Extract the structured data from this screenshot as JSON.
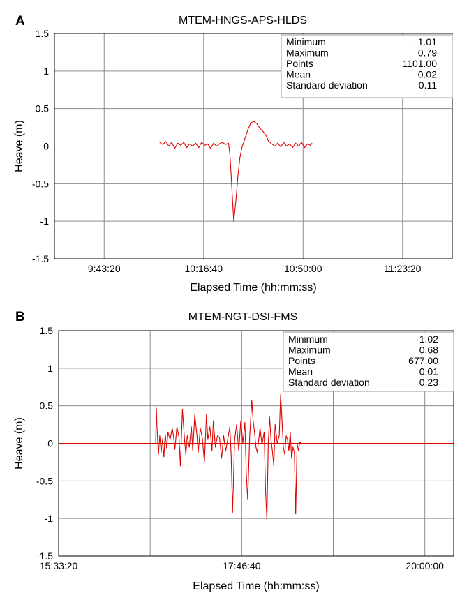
{
  "chart_data": [
    {
      "type": "line",
      "panel_label": "A",
      "title": "MTEM-HNGS-APS-HLDS",
      "xlabel": "Elapsed Time (hh:mm:ss)",
      "ylabel": "Heave (m)",
      "xlim": [
        "09:26:40",
        "11:40:00"
      ],
      "ylim": [
        -1.5,
        1.5
      ],
      "grid": true,
      "xticks": [
        "9:43:20",
        "10:16:40",
        "10:50:00",
        "11:23:20"
      ],
      "yticks": [
        "1.5",
        "1",
        "0.5",
        "0",
        "-0.5",
        "-1",
        "-1.5"
      ],
      "line_color": "#e00000",
      "baseline_color": "#e00000",
      "stats": [
        {
          "label": "Minimum",
          "value": "-1.01"
        },
        {
          "label": "Maximum",
          "value": "0.79"
        },
        {
          "label": "Points",
          "value": "1101.00"
        },
        {
          "label": "Mean",
          "value": "0.02"
        },
        {
          "label": "Standard deviation",
          "value": "0.11"
        }
      ],
      "series": [
        {
          "x": [
            "10:01:55",
            "10:03:00",
            "10:04:00",
            "10:05:00",
            "10:06:00",
            "10:07:00",
            "10:08:00",
            "10:09:00",
            "10:10:00",
            "10:11:00",
            "10:12:00",
            "10:13:00",
            "10:14:00",
            "10:15:00",
            "10:16:00",
            "10:17:00",
            "10:18:00",
            "10:19:00",
            "10:20:00",
            "10:21:00",
            "10:22:00",
            "10:23:00",
            "10:24:00",
            "10:25:00",
            "10:25:30",
            "10:26:00",
            "10:26:45",
            "10:27:30",
            "10:28:10",
            "10:28:50",
            "10:29:30",
            "10:30:30",
            "10:31:30",
            "10:32:30",
            "10:33:30",
            "10:34:30",
            "10:35:30",
            "10:36:30",
            "10:37:30",
            "10:38:30",
            "10:39:30",
            "10:40:30",
            "10:41:30",
            "10:42:30",
            "10:43:30",
            "10:44:30",
            "10:45:30",
            "10:46:30",
            "10:47:30",
            "10:48:30",
            "10:49:30",
            "10:50:30",
            "10:51:30",
            "10:52:30",
            "10:53:00"
          ],
          "y": [
            0.05,
            0.02,
            0.06,
            0.0,
            0.05,
            -0.03,
            0.04,
            0.01,
            0.05,
            -0.02,
            0.03,
            0.0,
            0.04,
            -0.02,
            0.05,
            0.01,
            0.03,
            -0.03,
            0.04,
            0.0,
            0.03,
            0.05,
            0.02,
            0.04,
            -0.12,
            -0.45,
            -1.0,
            -0.72,
            -0.4,
            -0.15,
            -0.02,
            0.1,
            0.22,
            0.31,
            0.33,
            0.3,
            0.24,
            0.2,
            0.15,
            0.06,
            0.03,
            0.0,
            0.04,
            -0.01,
            0.05,
            0.0,
            0.03,
            -0.02,
            0.04,
            0.0,
            0.05,
            -0.02,
            0.03,
            0.01,
            0.04
          ]
        }
      ]
    },
    {
      "type": "line",
      "panel_label": "B",
      "title": "MTEM-NGT-DSI-FMS",
      "xlabel": "Elapsed Time (hh:mm:ss)",
      "ylabel": "Heave (m)",
      "xlim": [
        "15:33:20",
        "20:21:00"
      ],
      "ylim": [
        -1.5,
        1.5
      ],
      "grid": true,
      "xticks": [
        "15:33:20",
        "17:46:40",
        "20:00:00"
      ],
      "yticks": [
        "1.5",
        "1",
        "0.5",
        "0",
        "-0.5",
        "-1",
        "-1.5"
      ],
      "line_color": "#e00000",
      "baseline_color": "#e00000",
      "stats": [
        {
          "label": "Minimum",
          "value": "-1.02"
        },
        {
          "label": "Maximum",
          "value": "0.68"
        },
        {
          "label": "Points",
          "value": "677.00"
        },
        {
          "label": "Mean",
          "value": "0.01"
        },
        {
          "label": "Standard deviation",
          "value": "0.23"
        }
      ],
      "series": [
        {
          "x": [
            "16:34:40",
            "16:44:00",
            "16:44:30",
            "16:45:00",
            "16:46:00",
            "16:47:00",
            "16:48:00",
            "16:49:00",
            "16:50:00",
            "16:51:00",
            "16:52:00",
            "16:53:00",
            "16:54:30",
            "16:56:00",
            "16:57:00",
            "16:58:00",
            "16:59:30",
            "17:01:00",
            "17:02:00",
            "17:03:30",
            "17:05:00",
            "17:06:00",
            "17:07:00",
            "17:08:30",
            "17:10:00",
            "17:11:00",
            "17:12:30",
            "17:14:00",
            "17:15:00",
            "17:16:30",
            "17:18:00",
            "17:19:30",
            "17:21:00",
            "17:22:00",
            "17:23:30",
            "17:25:00",
            "17:26:00",
            "17:27:30",
            "17:29:00",
            "17:30:30",
            "17:32:00",
            "17:33:30",
            "17:35:00",
            "17:36:30",
            "17:38:00",
            "17:39:00",
            "17:40:00",
            "17:41:30",
            "17:43:00",
            "17:44:30",
            "17:46:00",
            "17:47:30",
            "17:49:00",
            "17:50:00",
            "17:51:00",
            "17:52:30",
            "17:54:00",
            "17:55:00",
            "17:56:00",
            "17:57:00",
            "17:58:00",
            "18:00:00",
            "18:01:30",
            "18:03:00",
            "18:04:00",
            "18:05:00",
            "18:06:00",
            "18:07:00",
            "18:08:00",
            "18:09:00",
            "18:10:00",
            "18:11:00",
            "18:12:30",
            "18:14:00",
            "18:15:00",
            "18:16:00",
            "18:17:00",
            "18:18:00",
            "18:19:00",
            "18:20:00",
            "18:21:00",
            "18:22:00",
            "18:23:00",
            "18:24:00",
            "18:25:00",
            "18:26:00",
            "18:27:00",
            "18:28:00",
            "18:29:00",
            "18:30:00",
            "18:31:00",
            "18:32:00",
            "18:33:00",
            "18:34:00",
            "18:35:00",
            "18:36:00",
            "18:37:00",
            "18:38:00",
            "18:39:00",
            "18:40:00",
            "18:41:30",
            "18:43:00",
            "18:50:00"
          ],
          "y": [
            0.0,
            0.0,
            0.47,
            0.2,
            -0.15,
            0.1,
            -0.12,
            0.05,
            -0.18,
            0.12,
            -0.06,
            0.15,
            0.05,
            0.2,
            0.1,
            -0.08,
            0.22,
            0.08,
            -0.3,
            0.45,
            0.05,
            -0.15,
            0.1,
            -0.05,
            0.22,
            -0.1,
            0.38,
            0.12,
            -0.12,
            0.2,
            0.07,
            -0.25,
            0.38,
            0.05,
            0.22,
            -0.1,
            0.3,
            -0.05,
            0.1,
            0.08,
            -0.2,
            0.1,
            -0.1,
            0.05,
            0.22,
            -0.18,
            -0.92,
            0.05,
            0.25,
            -0.1,
            0.3,
            0.0,
            0.28,
            -0.4,
            -0.75,
            0.1,
            0.57,
            0.3,
            0.15,
            -0.05,
            -0.12,
            0.2,
            -0.02,
            0.15,
            -0.6,
            -1.02,
            0.0,
            0.35,
            0.05,
            -0.1,
            -0.3,
            0.25,
            0.0,
            0.1,
            0.65,
            0.3,
            -0.05,
            -0.15,
            0.1,
            0.05,
            -0.1,
            0.15,
            -0.2,
            -0.05,
            -0.12,
            -0.94,
            0.0,
            -0.1,
            0.02,
            0.0,
            0.0,
            0.0,
            0.0,
            0.0,
            0.0,
            0.0,
            0.0,
            0.0,
            0.0,
            0.0,
            0.0,
            0.0,
            0.0
          ]
        }
      ]
    }
  ]
}
